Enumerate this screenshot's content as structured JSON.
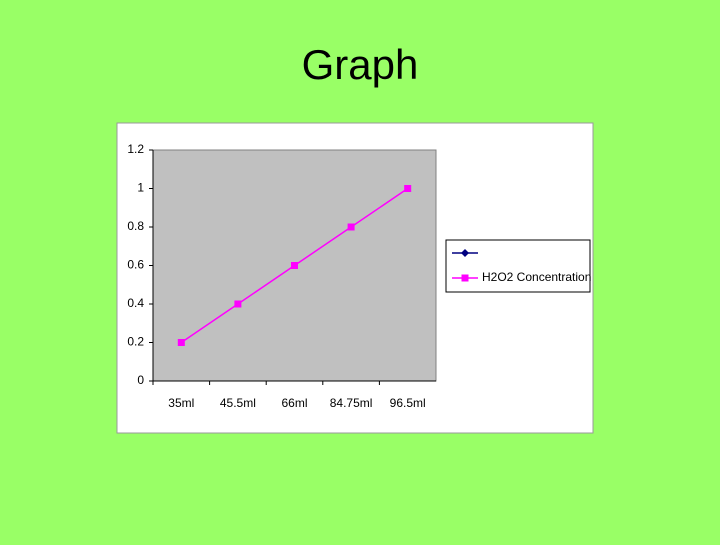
{
  "chart_data": {
    "type": "line",
    "title": "Graph",
    "categories": [
      "35ml",
      "45.5ml",
      "66ml",
      "84.75ml",
      "96.5ml"
    ],
    "series": [
      {
        "color": "#000080",
        "marker": "diamond",
        "values": [
          null,
          null,
          null,
          null,
          null
        ]
      },
      {
        "name": "H2O2 Concentration",
        "color": "#ff00ff",
        "marker": "square",
        "values": [
          0.2,
          0.4,
          0.6,
          0.8,
          1
        ]
      }
    ],
    "ylim": [
      0,
      1.2
    ],
    "yticks": [
      0,
      0.2,
      0.4,
      0.6,
      0.8,
      1,
      1.2
    ],
    "grid": false,
    "legend": "right"
  }
}
